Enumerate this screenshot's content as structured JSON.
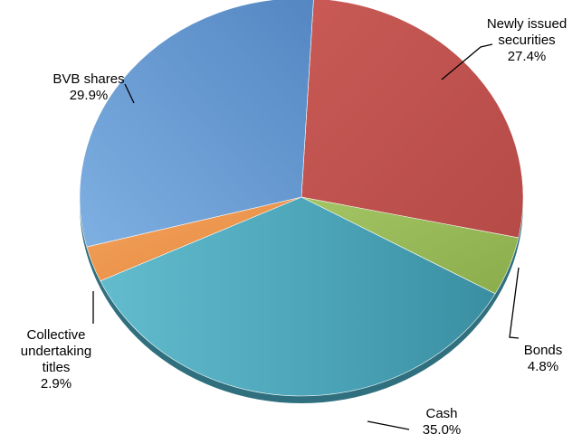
{
  "chart_data": {
    "type": "pie",
    "style": "3d-tilted",
    "title": "",
    "slices": [
      {
        "label": [
          "Newly issued",
          "securities"
        ],
        "value": 27.4,
        "value_label": "27.4%",
        "color": "#c0504d"
      },
      {
        "label": [
          "Bonds"
        ],
        "value": 4.8,
        "value_label": "4.8%",
        "color": "#9bbb59"
      },
      {
        "label": [
          "Cash"
        ],
        "value": 35.0,
        "value_label": "35.0%",
        "color": "#4aacc6"
      },
      {
        "label": [
          "Collective",
          "undertaking",
          "titles"
        ],
        "value": 2.9,
        "value_label": "2.9%",
        "color": "#f79646"
      },
      {
        "label": [
          "BVB shares"
        ],
        "value": 29.9,
        "value_label": "29.9%",
        "color": "#4f81bd"
      }
    ]
  }
}
